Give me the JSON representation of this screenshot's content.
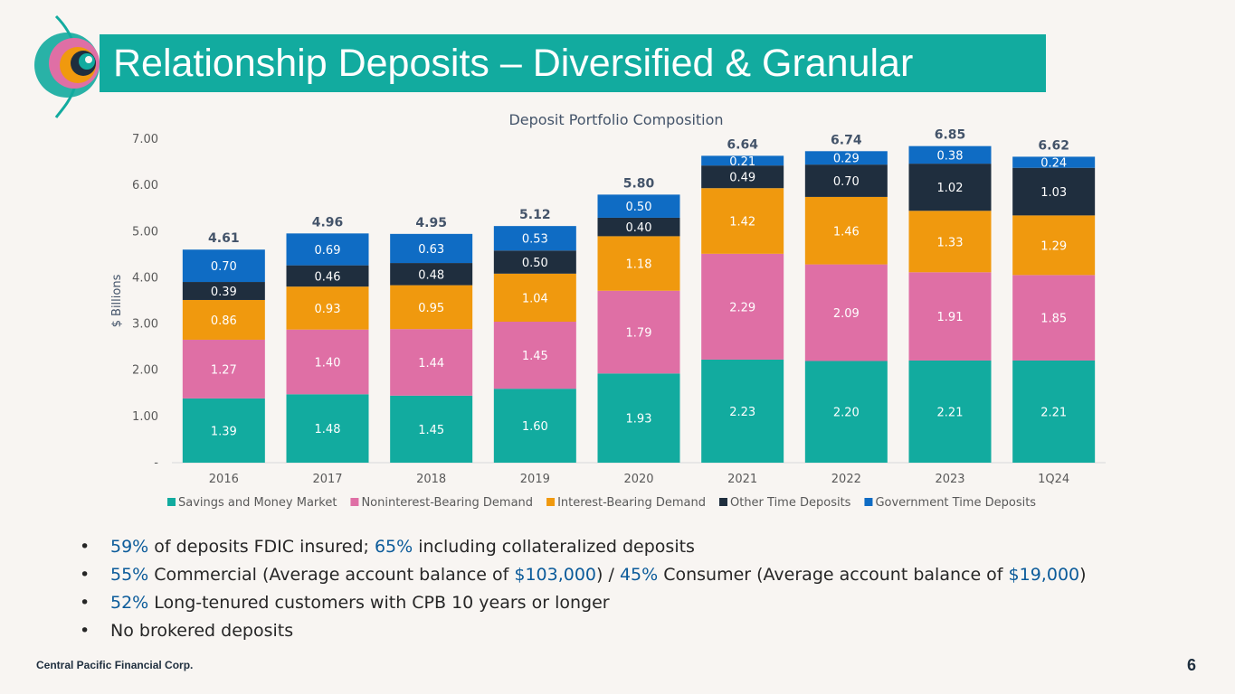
{
  "slide": {
    "title": "Relationship Deposits – Diversified & Granular",
    "footer": "Central Pacific Financial Corp.",
    "page_number": "6",
    "bullets": [
      {
        "parts": [
          {
            "t": "59%",
            "hl": true
          },
          {
            "t": " of deposits FDIC insured; ",
            "hl": false
          },
          {
            "t": "65%",
            "hl": true
          },
          {
            "t": " including collateralized deposits",
            "hl": false
          }
        ]
      },
      {
        "parts": [
          {
            "t": "55%",
            "hl": true
          },
          {
            "t": " Commercial (Average account balance of ",
            "hl": false
          },
          {
            "t": "$103,000",
            "hl": true
          },
          {
            "t": ") / ",
            "hl": false
          },
          {
            "t": "45%",
            "hl": true
          },
          {
            "t": " Consumer (Average account balance of ",
            "hl": false
          },
          {
            "t": "$19,000",
            "hl": true
          },
          {
            "t": ")",
            "hl": false
          }
        ]
      },
      {
        "parts": [
          {
            "t": "52%",
            "hl": true
          },
          {
            "t": " Long-tenured customers with CPB 10 years or longer",
            "hl": false
          }
        ]
      },
      {
        "parts": [
          {
            "t": "No brokered deposits",
            "hl": false
          }
        ]
      }
    ]
  },
  "chart_data": {
    "type": "bar",
    "stacked": true,
    "title": "Deposit Portfolio Composition",
    "xlabel": "",
    "ylabel": "$ Billions",
    "ylim": [
      0,
      7
    ],
    "yticks": [
      "-",
      "1.00",
      "2.00",
      "3.00",
      "4.00",
      "5.00",
      "6.00",
      "7.00"
    ],
    "categories": [
      "2016",
      "2017",
      "2018",
      "2019",
      "2020",
      "2021",
      "2022",
      "2023",
      "1Q24"
    ],
    "totals": [
      "4.61",
      "4.96",
      "4.95",
      "5.12",
      "5.80",
      "6.64",
      "6.74",
      "6.85",
      "6.62"
    ],
    "legend_position": "bottom",
    "series": [
      {
        "name": "Savings and Money Market",
        "color": "#12ab9f",
        "values": [
          1.39,
          1.48,
          1.45,
          1.6,
          1.93,
          2.23,
          2.2,
          2.21,
          2.21
        ],
        "labels": [
          "1.39",
          "1.48",
          "1.45",
          "1.60",
          "1.93",
          "2.23",
          "2.20",
          "2.21",
          "2.21"
        ]
      },
      {
        "name": "Noninterest-Bearing Demand",
        "color": "#df6fa5",
        "values": [
          1.27,
          1.4,
          1.44,
          1.45,
          1.79,
          2.29,
          2.09,
          1.91,
          1.85
        ],
        "labels": [
          "1.27",
          "1.40",
          "1.44",
          "1.45",
          "1.79",
          "2.29",
          "2.09",
          "1.91",
          "1.85"
        ]
      },
      {
        "name": "Interest-Bearing Demand",
        "color": "#f0990e",
        "values": [
          0.86,
          0.93,
          0.95,
          1.04,
          1.18,
          1.42,
          1.46,
          1.33,
          1.29
        ],
        "labels": [
          "0.86",
          "0.93",
          "0.95",
          "1.04",
          "1.18",
          "1.42",
          "1.46",
          "1.33",
          "1.29"
        ]
      },
      {
        "name": "Other Time Deposits",
        "color": "#1f2e3e",
        "values": [
          0.39,
          0.46,
          0.48,
          0.5,
          0.4,
          0.49,
          0.7,
          1.02,
          1.03
        ],
        "labels": [
          "0.39",
          "0.46",
          "0.48",
          "0.50",
          "0.40",
          "0.49",
          "0.70",
          "1.02",
          "1.03"
        ]
      },
      {
        "name": "Government Time Deposits",
        "color": "#0f6cc4",
        "values": [
          0.7,
          0.69,
          0.63,
          0.53,
          0.5,
          0.21,
          0.29,
          0.38,
          0.24
        ],
        "labels": [
          "0.70",
          "0.69",
          "0.63",
          "0.53",
          "0.50",
          "0.21",
          "0.29",
          "0.38",
          "0.24"
        ]
      }
    ]
  }
}
